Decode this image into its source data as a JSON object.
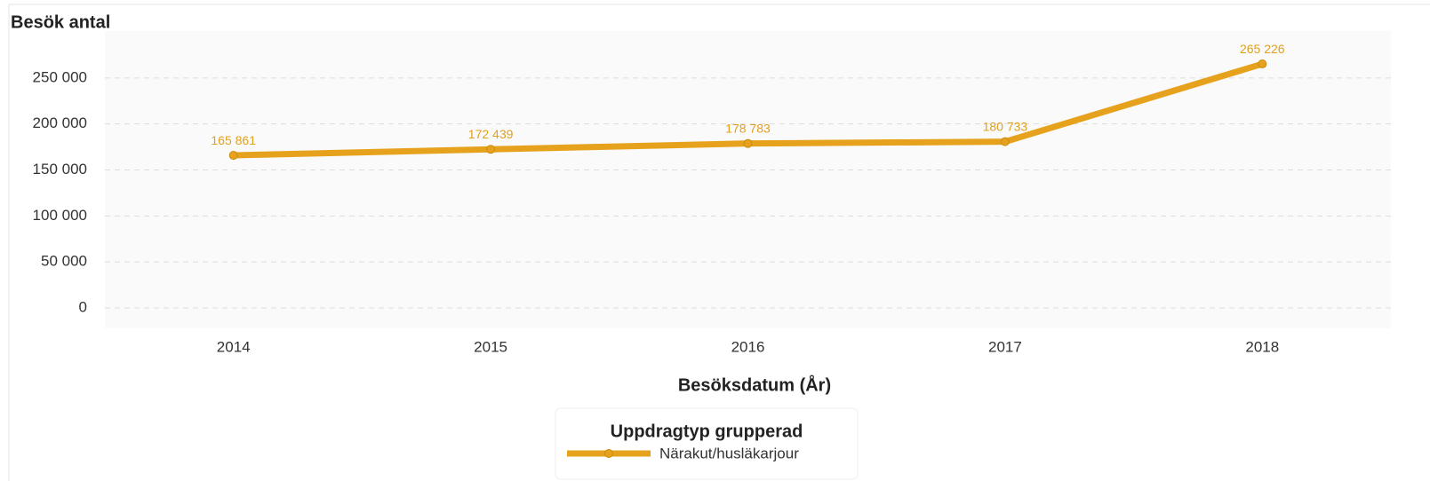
{
  "chart_data": {
    "type": "line",
    "y_label": "Besök antal",
    "x_label": "Besöksdatum (År)",
    "legend_title": "Uppdragtyp grupperad",
    "categories": [
      "2014",
      "2015",
      "2016",
      "2017",
      "2018"
    ],
    "series": [
      {
        "name": "Närakut/husläkarjour",
        "color": "#e6a21c",
        "values": [
          165861,
          172439,
          178783,
          180733,
          265226
        ],
        "value_labels": [
          "165 861",
          "172 439",
          "178 783",
          "180 733",
          "265 226"
        ]
      }
    ],
    "ylim": [
      0,
      300000
    ],
    "yticks": [
      0,
      {
        "value": 50000,
        "label": "50 000"
      },
      {
        "value": 100000,
        "label": "100 000"
      },
      {
        "value": 150000,
        "label": "150 000"
      },
      {
        "value": 200000,
        "label": "200 000"
      },
      {
        "value": 250000,
        "label": "250 000"
      }
    ],
    "grid": true
  }
}
